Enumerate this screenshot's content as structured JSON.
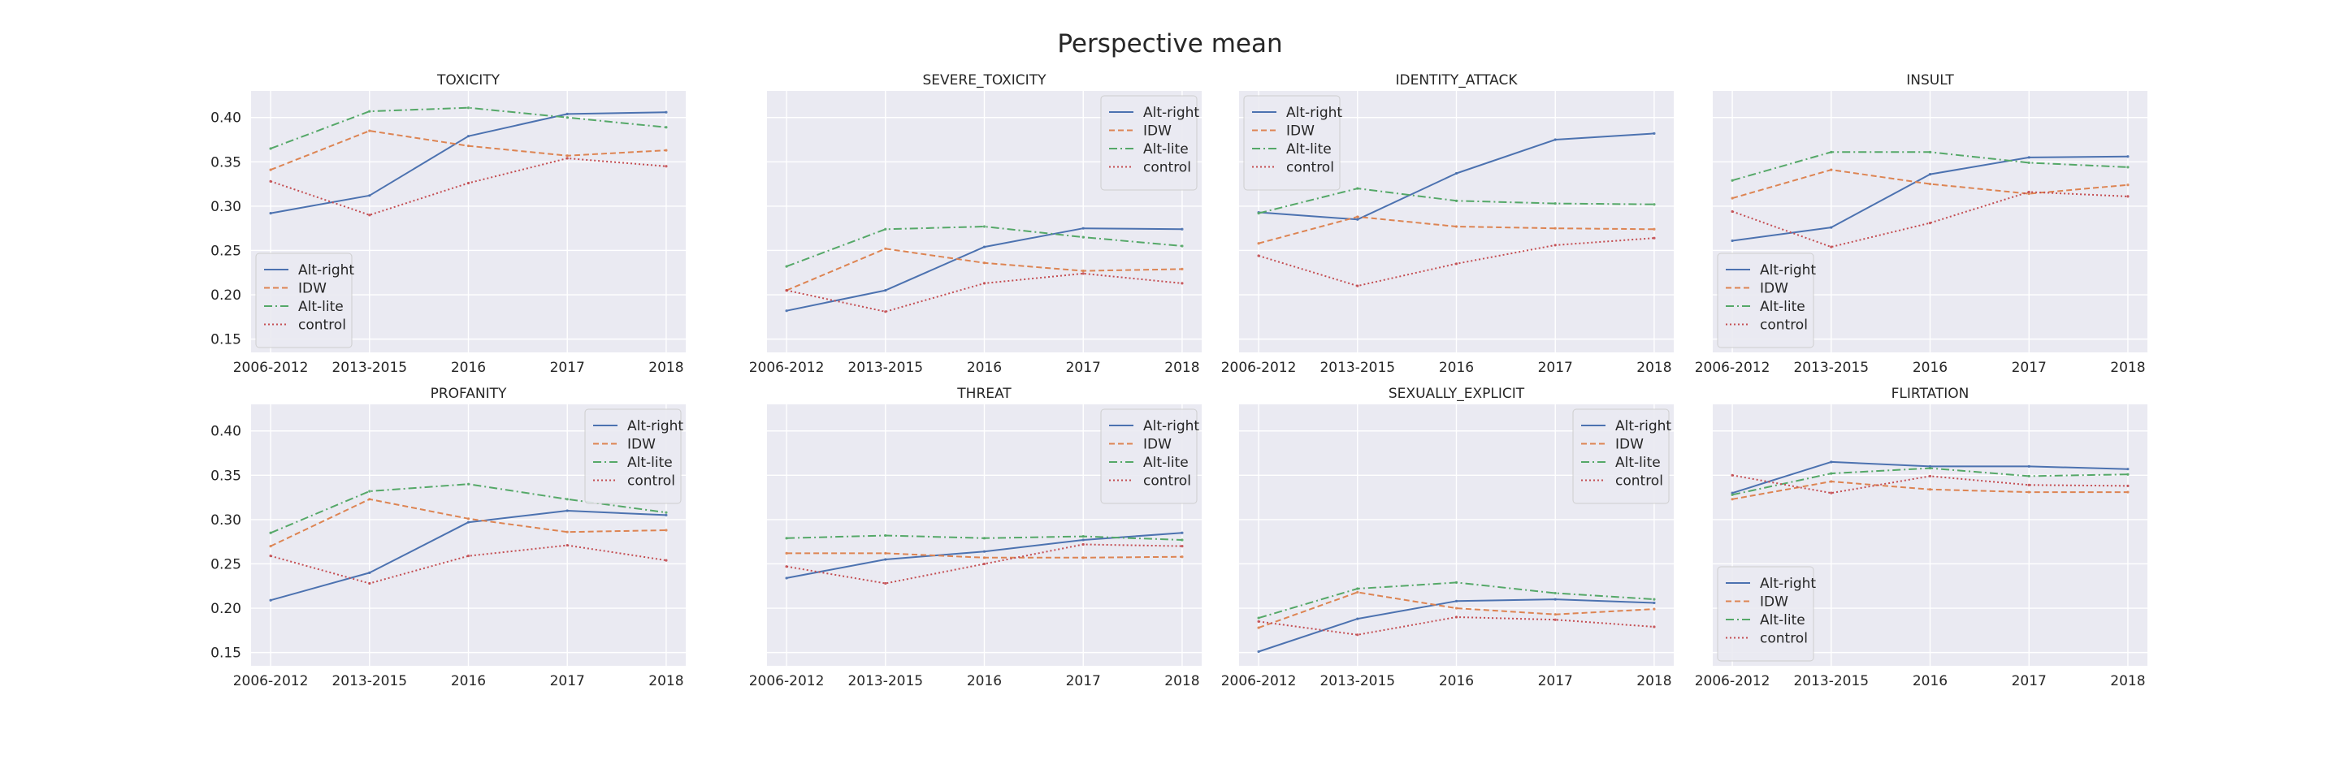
{
  "figure": {
    "title": "Perspective mean"
  },
  "legend_labels": [
    "Alt-right",
    "IDW",
    "Alt-lite",
    "control"
  ],
  "styles": {
    "Alt-right": {
      "color": "#4c72b0",
      "dash": ""
    },
    "IDW": {
      "color": "#dd8452",
      "dash": "7 4"
    },
    "Alt-lite": {
      "color": "#55a868",
      "dash": "10 4 2 4"
    },
    "control": {
      "color": "#c44e52",
      "dash": "2 3"
    }
  },
  "colors": {
    "panel_bg": "#eaeaf2",
    "grid": "#ffffff",
    "text": "#262626"
  },
  "chart_data": [
    {
      "type": "line",
      "title": "TOXICITY",
      "x": [
        "2006-2012",
        "2013-2015",
        "2016",
        "2017",
        "2018"
      ],
      "ylim": [
        0.135,
        0.43
      ],
      "yticks": [
        "0.15",
        "0.20",
        "0.25",
        "0.30",
        "0.35",
        "0.40"
      ],
      "legend": "lower-left",
      "grid": true,
      "series": [
        {
          "name": "Alt-right",
          "values": [
            0.292,
            0.312,
            0.379,
            0.404,
            0.406
          ]
        },
        {
          "name": "IDW",
          "values": [
            0.341,
            0.385,
            0.368,
            0.357,
            0.363
          ]
        },
        {
          "name": "Alt-lite",
          "values": [
            0.365,
            0.407,
            0.411,
            0.4,
            0.389
          ]
        },
        {
          "name": "control",
          "values": [
            0.328,
            0.29,
            0.326,
            0.354,
            0.345
          ]
        }
      ]
    },
    {
      "type": "line",
      "title": "SEVERE_TOXICITY",
      "x": [
        "2006-2012",
        "2013-2015",
        "2016",
        "2017",
        "2018"
      ],
      "ylim": [
        0.135,
        0.43
      ],
      "yticks": [
        "0.15",
        "0.20",
        "0.25",
        "0.30",
        "0.35",
        "0.40"
      ],
      "legend": "upper-right",
      "grid": true,
      "series": [
        {
          "name": "Alt-right",
          "values": [
            0.182,
            0.205,
            0.254,
            0.275,
            0.274
          ]
        },
        {
          "name": "IDW",
          "values": [
            0.205,
            0.252,
            0.236,
            0.227,
            0.229
          ]
        },
        {
          "name": "Alt-lite",
          "values": [
            0.232,
            0.274,
            0.277,
            0.265,
            0.255
          ]
        },
        {
          "name": "control",
          "values": [
            0.205,
            0.181,
            0.213,
            0.224,
            0.213
          ]
        }
      ]
    },
    {
      "type": "line",
      "title": "IDENTITY_ATTACK",
      "x": [
        "2006-2012",
        "2013-2015",
        "2016",
        "2017",
        "2018"
      ],
      "ylim": [
        0.135,
        0.43
      ],
      "yticks": [
        "0.15",
        "0.20",
        "0.25",
        "0.30",
        "0.35",
        "0.40"
      ],
      "legend": "upper-left",
      "grid": true,
      "series": [
        {
          "name": "Alt-right",
          "values": [
            0.293,
            0.285,
            0.337,
            0.375,
            0.382
          ]
        },
        {
          "name": "IDW",
          "values": [
            0.258,
            0.288,
            0.277,
            0.275,
            0.274
          ]
        },
        {
          "name": "Alt-lite",
          "values": [
            0.292,
            0.32,
            0.306,
            0.303,
            0.302
          ]
        },
        {
          "name": "control",
          "values": [
            0.244,
            0.21,
            0.235,
            0.256,
            0.264
          ]
        }
      ]
    },
    {
      "type": "line",
      "title": "INSULT",
      "x": [
        "2006-2012",
        "2013-2015",
        "2016",
        "2017",
        "2018"
      ],
      "ylim": [
        0.135,
        0.43
      ],
      "yticks": [
        "0.15",
        "0.20",
        "0.25",
        "0.30",
        "0.35",
        "0.40"
      ],
      "legend": "lower-left",
      "grid": true,
      "series": [
        {
          "name": "Alt-right",
          "values": [
            0.261,
            0.276,
            0.336,
            0.355,
            0.356
          ]
        },
        {
          "name": "IDW",
          "values": [
            0.309,
            0.341,
            0.325,
            0.314,
            0.324
          ]
        },
        {
          "name": "Alt-lite",
          "values": [
            0.329,
            0.361,
            0.361,
            0.349,
            0.344
          ]
        },
        {
          "name": "control",
          "values": [
            0.294,
            0.254,
            0.281,
            0.316,
            0.311
          ]
        }
      ]
    },
    {
      "type": "line",
      "title": "PROFANITY",
      "x": [
        "2006-2012",
        "2013-2015",
        "2016",
        "2017",
        "2018"
      ],
      "ylim": [
        0.135,
        0.43
      ],
      "yticks": [
        "0.15",
        "0.20",
        "0.25",
        "0.30",
        "0.35",
        "0.40"
      ],
      "legend": "upper-right",
      "grid": true,
      "series": [
        {
          "name": "Alt-right",
          "values": [
            0.209,
            0.24,
            0.297,
            0.31,
            0.305
          ]
        },
        {
          "name": "IDW",
          "values": [
            0.27,
            0.323,
            0.301,
            0.286,
            0.288
          ]
        },
        {
          "name": "Alt-lite",
          "values": [
            0.285,
            0.332,
            0.34,
            0.323,
            0.308
          ]
        },
        {
          "name": "control",
          "values": [
            0.259,
            0.228,
            0.259,
            0.271,
            0.254
          ]
        }
      ]
    },
    {
      "type": "line",
      "title": "THREAT",
      "x": [
        "2006-2012",
        "2013-2015",
        "2016",
        "2017",
        "2018"
      ],
      "ylim": [
        0.135,
        0.43
      ],
      "yticks": [
        "0.15",
        "0.20",
        "0.25",
        "0.30",
        "0.35",
        "0.40"
      ],
      "legend": "upper-right",
      "grid": true,
      "series": [
        {
          "name": "Alt-right",
          "values": [
            0.234,
            0.255,
            0.264,
            0.277,
            0.285
          ]
        },
        {
          "name": "IDW",
          "values": [
            0.262,
            0.262,
            0.257,
            0.257,
            0.258
          ]
        },
        {
          "name": "Alt-lite",
          "values": [
            0.279,
            0.282,
            0.279,
            0.281,
            0.277
          ]
        },
        {
          "name": "control",
          "values": [
            0.247,
            0.228,
            0.25,
            0.272,
            0.27
          ]
        }
      ]
    },
    {
      "type": "line",
      "title": "SEXUALLY_EXPLICIT",
      "x": [
        "2006-2012",
        "2013-2015",
        "2016",
        "2017",
        "2018"
      ],
      "ylim": [
        0.135,
        0.43
      ],
      "yticks": [
        "0.15",
        "0.20",
        "0.25",
        "0.30",
        "0.35",
        "0.40"
      ],
      "legend": "upper-right",
      "grid": true,
      "series": [
        {
          "name": "Alt-right",
          "values": [
            0.151,
            0.188,
            0.208,
            0.21,
            0.206
          ]
        },
        {
          "name": "IDW",
          "values": [
            0.178,
            0.218,
            0.2,
            0.193,
            0.199
          ]
        },
        {
          "name": "Alt-lite",
          "values": [
            0.189,
            0.222,
            0.229,
            0.217,
            0.21
          ]
        },
        {
          "name": "control",
          "values": [
            0.185,
            0.17,
            0.19,
            0.187,
            0.179
          ]
        }
      ]
    },
    {
      "type": "line",
      "title": "FLIRTATION",
      "x": [
        "2006-2012",
        "2013-2015",
        "2016",
        "2017",
        "2018"
      ],
      "ylim": [
        0.135,
        0.43
      ],
      "yticks": [
        "0.15",
        "0.20",
        "0.25",
        "0.30",
        "0.35",
        "0.40"
      ],
      "legend": "lower-left",
      "grid": true,
      "series": [
        {
          "name": "Alt-right",
          "values": [
            0.33,
            0.365,
            0.36,
            0.36,
            0.357
          ]
        },
        {
          "name": "IDW",
          "values": [
            0.323,
            0.343,
            0.334,
            0.331,
            0.331
          ]
        },
        {
          "name": "Alt-lite",
          "values": [
            0.328,
            0.352,
            0.358,
            0.349,
            0.351
          ]
        },
        {
          "name": "control",
          "values": [
            0.35,
            0.33,
            0.349,
            0.339,
            0.338
          ]
        }
      ]
    }
  ]
}
